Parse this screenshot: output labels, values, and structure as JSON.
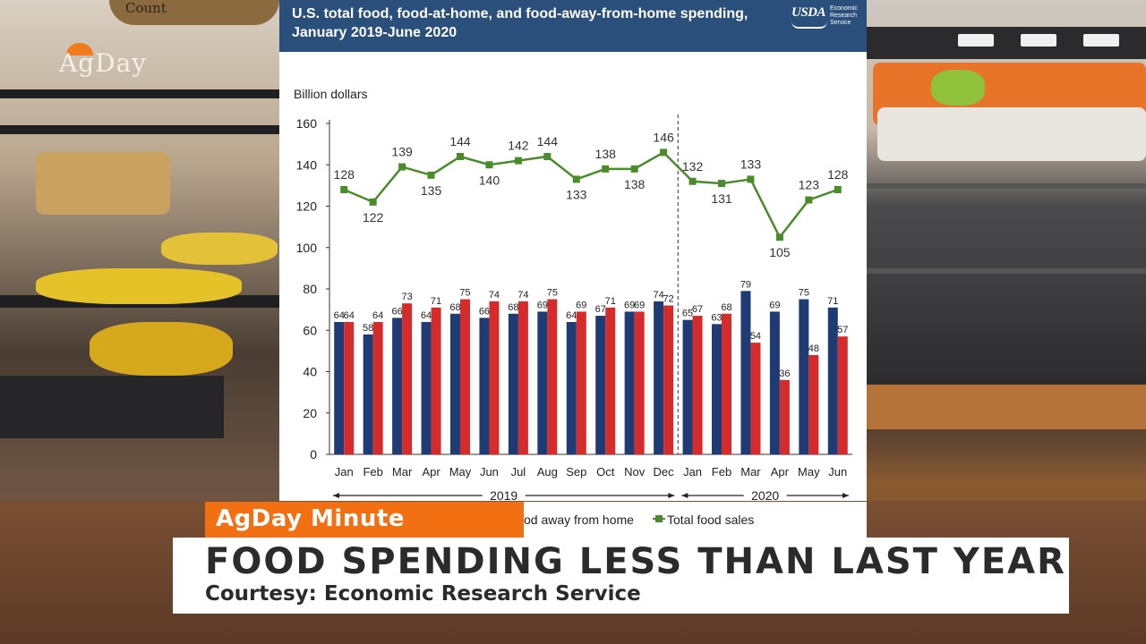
{
  "broadcast": {
    "logo": "AgDay",
    "store_sign": "Count",
    "segment_tag": "AgDay Minute",
    "headline": "FOOD SPENDING LESS THAN LAST YEAR",
    "courtesy": "Courtesy: Economic Research Service",
    "legend_partial": "od away from home",
    "legend_total": "Total food sales"
  },
  "source_logo": {
    "name": "USDA",
    "agency_lines": [
      "Economic",
      "Research",
      "Service"
    ]
  },
  "colors": {
    "food_at_home": "#1f3b73",
    "food_away": "#d62b2b",
    "total": "#4a8c2a",
    "header": "#2a4f7a",
    "tag": "#f26f12"
  },
  "chart_data": {
    "type": "bar",
    "title": "U.S. total food, food-at-home, and food-away-from-home spending, January 2019-June 2020",
    "ylabel": "Billion dollars",
    "ylim": [
      0,
      160
    ],
    "yticks": [
      0,
      20,
      40,
      60,
      80,
      100,
      120,
      140,
      160
    ],
    "categories": [
      "Jan",
      "Feb",
      "Mar",
      "Apr",
      "May",
      "Jun",
      "Jul",
      "Aug",
      "Sep",
      "Oct",
      "Nov",
      "Dec",
      "Jan",
      "Feb",
      "Mar",
      "Apr",
      "May",
      "Jun"
    ],
    "year_groups": [
      {
        "label": "2019",
        "from": 0,
        "to": 11
      },
      {
        "label": "2020",
        "from": 12,
        "to": 17
      }
    ],
    "divider_after_index": 11,
    "series": [
      {
        "key": "food_at_home",
        "values": [
          64,
          58,
          66,
          64,
          68,
          66,
          68,
          69,
          64,
          67,
          69,
          74,
          65,
          63,
          79,
          69,
          75,
          71
        ],
        "labels": [
          "64",
          "58",
          "66",
          "64",
          "68",
          "66",
          "68",
          "69",
          "64",
          "67",
          "69",
          "74",
          "65",
          "63",
          "79",
          "69",
          "75",
          "71"
        ]
      },
      {
        "key": "food_away",
        "name": "Food away from home",
        "values": [
          64,
          64,
          73,
          71,
          75,
          74,
          74,
          75,
          69,
          71,
          69,
          72,
          67,
          68,
          54,
          36,
          48,
          57
        ],
        "labels": [
          "64",
          "64",
          "73",
          "71",
          "75",
          "74",
          "74",
          "75",
          "69",
          "71",
          "69",
          "72",
          "67",
          "68",
          "54",
          "36",
          "48",
          "57"
        ]
      },
      {
        "key": "total",
        "name": "Total food sales",
        "type": "line",
        "values": [
          128,
          122,
          139,
          135,
          144,
          140,
          142,
          144,
          133,
          138,
          138,
          146,
          132,
          131,
          133,
          105,
          123,
          128
        ],
        "labels": [
          "128",
          "122",
          "139",
          "135",
          "144",
          "140",
          "142",
          "144",
          "133",
          "138",
          "138",
          "146",
          "132",
          "131",
          "133",
          "105",
          "123",
          "128"
        ]
      }
    ],
    "grid": false
  }
}
